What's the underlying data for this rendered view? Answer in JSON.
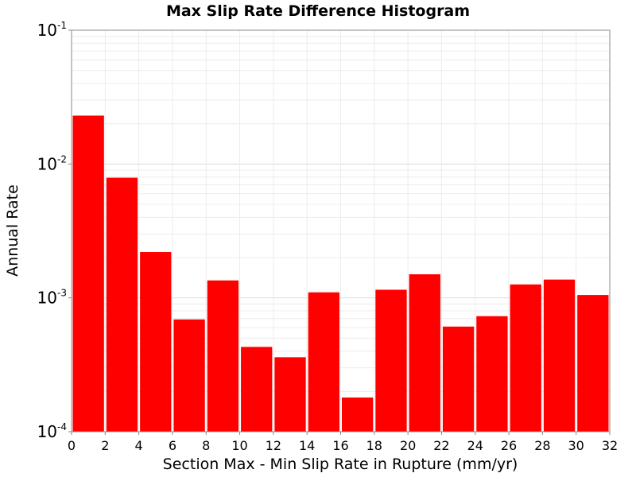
{
  "chart_data": {
    "type": "bar",
    "title": "Max Slip Rate Difference Histogram",
    "xlabel": "Section Max - Min Slip Rate in Rupture (mm/yr)",
    "ylabel": "Annual Rate",
    "xlim": [
      0,
      32
    ],
    "ylim": [
      0.0001,
      0.1
    ],
    "yscale": "log",
    "grid": true,
    "bar_color": "#ff0000",
    "x_ticks": [
      "0",
      "2",
      "4",
      "6",
      "8",
      "10",
      "12",
      "14",
      "16",
      "18",
      "20",
      "22",
      "24",
      "26",
      "28",
      "30",
      "32"
    ],
    "y_ticks": [
      {
        "base": "10",
        "exp": "-4",
        "value": 0.0001
      },
      {
        "base": "10",
        "exp": "-3",
        "value": 0.001
      },
      {
        "base": "10",
        "exp": "-2",
        "value": 0.01
      },
      {
        "base": "10",
        "exp": "-1",
        "value": 0.1
      }
    ],
    "bins": [
      {
        "x0": 0,
        "x1": 2,
        "value": 0.023
      },
      {
        "x0": 2,
        "x1": 4,
        "value": 0.0079
      },
      {
        "x0": 4,
        "x1": 6,
        "value": 0.0022
      },
      {
        "x0": 6,
        "x1": 8,
        "value": 0.00069
      },
      {
        "x0": 8,
        "x1": 10,
        "value": 0.00135
      },
      {
        "x0": 10,
        "x1": 12,
        "value": 0.00043
      },
      {
        "x0": 12,
        "x1": 14,
        "value": 0.00036
      },
      {
        "x0": 14,
        "x1": 16,
        "value": 0.0011
      },
      {
        "x0": 16,
        "x1": 18,
        "value": 0.00018
      },
      {
        "x0": 18,
        "x1": 20,
        "value": 0.00115
      },
      {
        "x0": 20,
        "x1": 22,
        "value": 0.0015
      },
      {
        "x0": 22,
        "x1": 24,
        "value": 0.00061
      },
      {
        "x0": 24,
        "x1": 26,
        "value": 0.00073
      },
      {
        "x0": 26,
        "x1": 28,
        "value": 0.00126
      },
      {
        "x0": 28,
        "x1": 30,
        "value": 0.00137
      },
      {
        "x0": 30,
        "x1": 32,
        "value": 0.00105
      }
    ]
  }
}
